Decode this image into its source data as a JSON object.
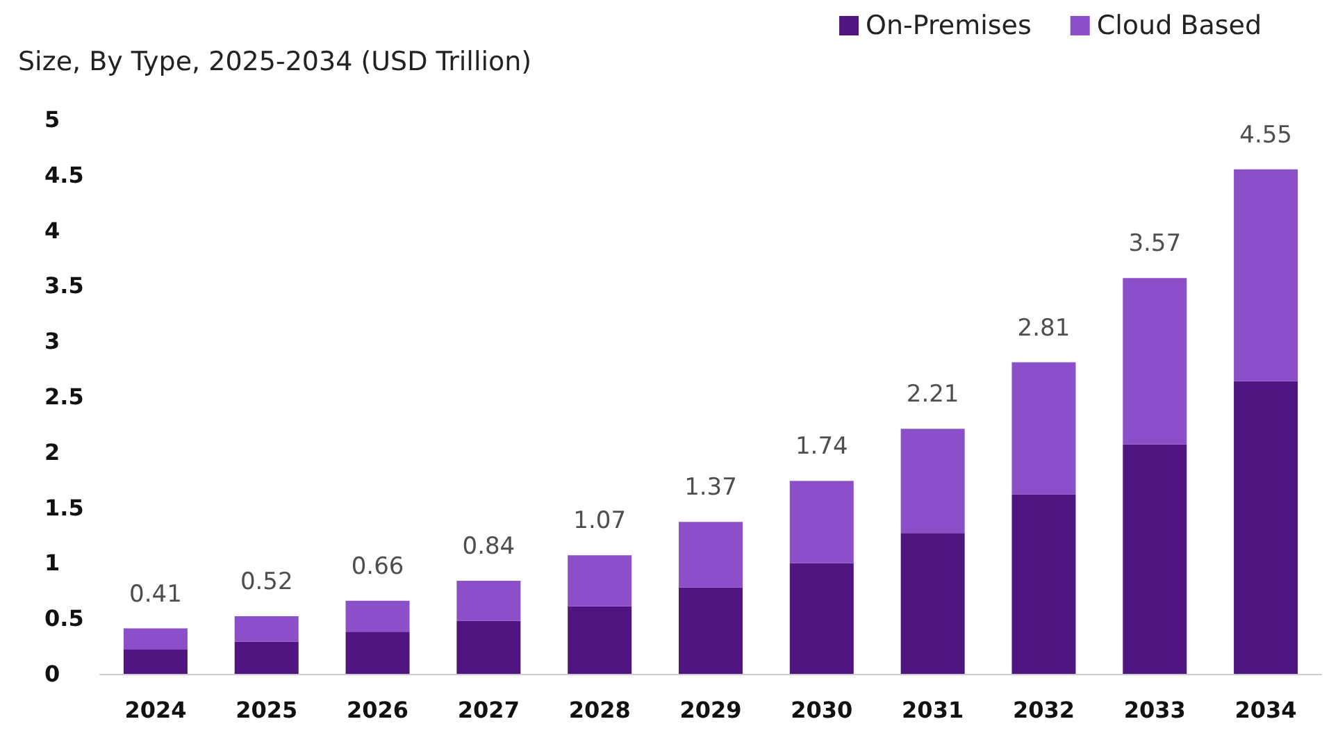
{
  "chart_data": {
    "type": "bar",
    "title": "Size, By Type, 2025-2034 (USD Trillion)",
    "categories": [
      "2024",
      "2025",
      "2026",
      "2027",
      "2028",
      "2029",
      "2030",
      "2031",
      "2032",
      "2033",
      "2034"
    ],
    "series": [
      {
        "name": "On-Premises",
        "color": "#4f1580",
        "values": [
          0.22,
          0.29,
          0.38,
          0.48,
          0.61,
          0.78,
          1.0,
          1.27,
          1.62,
          2.07,
          2.64
        ]
      },
      {
        "name": "Cloud Based",
        "color": "#8b4fc9",
        "values": [
          0.19,
          0.23,
          0.28,
          0.36,
          0.46,
          0.59,
          0.74,
          0.94,
          1.19,
          1.5,
          1.91
        ]
      }
    ],
    "stacked": true,
    "totals": [
      "0.41",
      "0.52",
      "0.66",
      "0.84",
      "1.07",
      "1.37",
      "1.74",
      "2.21",
      "2.81",
      "3.57",
      "4.55"
    ],
    "ylim": [
      0,
      5
    ],
    "yticks": [
      0,
      0.5,
      1,
      1.5,
      2,
      2.5,
      3,
      3.5,
      4,
      4.5,
      5
    ],
    "grid": false,
    "legend": "top right"
  }
}
